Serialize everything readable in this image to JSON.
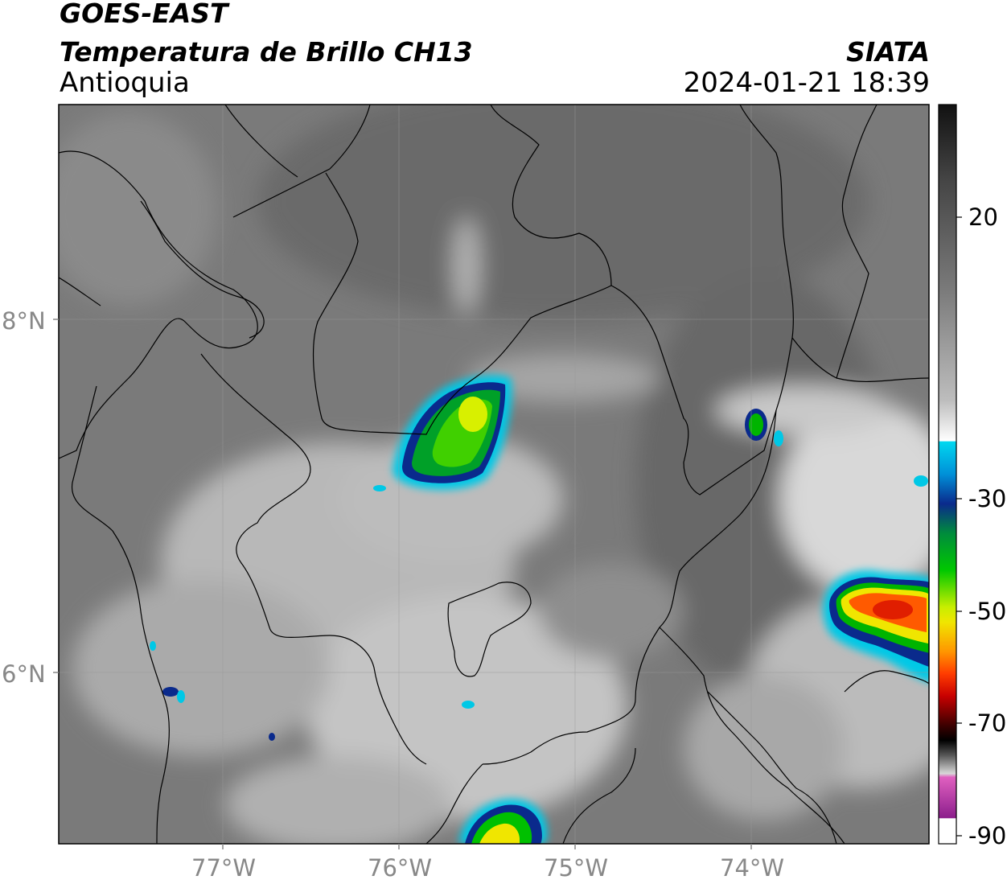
{
  "header": {
    "satellite": "GOES-EAST",
    "product": "Temperatura de Brillo CH13",
    "region": "Antioquia",
    "agency": "SIATA",
    "datetime": "2024-01-21 18:39"
  },
  "map": {
    "lat_labels": [
      "8°N",
      "6°N"
    ],
    "lon_labels": [
      "77°W",
      "76°W",
      "75°W",
      "74°W"
    ],
    "land_color": "#6e6e6e",
    "cloud_color": "#e6e6e6",
    "border_color": "#000000",
    "gridline_color": "#999999",
    "grid": true
  },
  "colorbar": {
    "tick_labels": [
      "20",
      "-30",
      "-50",
      "-70",
      "-90"
    ],
    "colors": {
      "warm_top": "#111111",
      "gray_mid": "#9a9a9a",
      "white": "#ffffff",
      "cyan": "#00c8e6",
      "blue": "#0a2a8c",
      "green": "#00b400",
      "yellow": "#f0e600",
      "orange": "#ff7800",
      "red": "#dc0000",
      "dark_red": "#5a0000",
      "black": "#000000",
      "light_gray": "#d8d8d8",
      "magenta": "#e060c0",
      "purple": "#8c1e8c"
    }
  }
}
